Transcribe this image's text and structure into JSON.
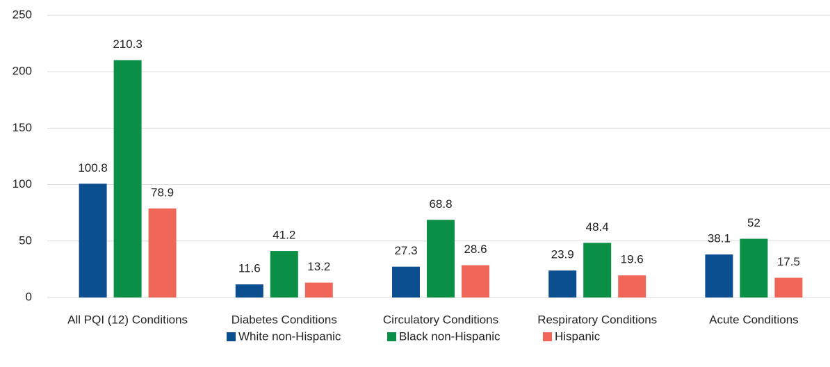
{
  "chart_data": {
    "type": "bar",
    "categories": [
      "All PQI (12) Conditions",
      "Diabetes Conditions",
      "Circulatory Conditions",
      "Respiratory Conditions",
      "Acute Conditions"
    ],
    "series": [
      {
        "name": "White non-Hispanic",
        "color": "#0b4f91",
        "values": [
          100.8,
          11.6,
          27.3,
          23.9,
          38.1
        ]
      },
      {
        "name": "Black non-Hispanic",
        "color": "#0a8f47",
        "values": [
          210.3,
          41.2,
          68.8,
          48.4,
          52
        ]
      },
      {
        "name": "Hispanic",
        "color": "#f0675a",
        "values": [
          78.9,
          13.2,
          28.6,
          19.6,
          17.5
        ]
      }
    ],
    "ylim": [
      0,
      250
    ],
    "yticks": [
      0,
      50,
      100,
      150,
      200,
      250
    ],
    "grid": true,
    "legend": "bottom"
  }
}
